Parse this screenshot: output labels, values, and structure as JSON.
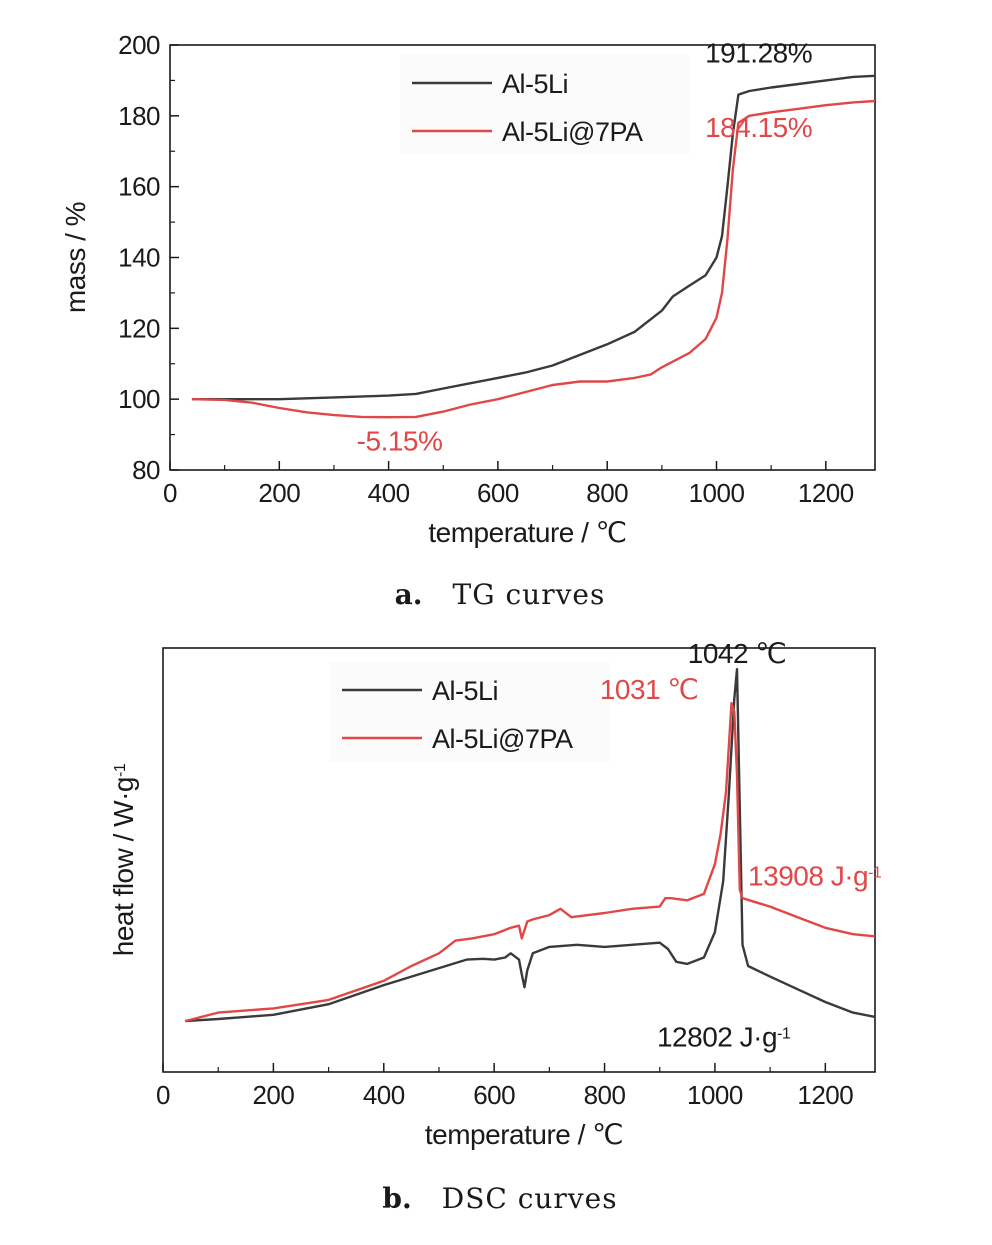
{
  "colors": {
    "black_series": "#3a3a3a",
    "red_series": "#e04848",
    "axis": "#1a1a1a"
  },
  "chart_data": [
    {
      "type": "line",
      "caption": {
        "label": "a.",
        "text": "TG curves"
      },
      "xlabel": "temperature / ℃",
      "ylabel": "mass / %",
      "xlim": [
        0,
        1290
      ],
      "ylim": [
        80,
        200
      ],
      "xticks": [
        0,
        200,
        400,
        600,
        800,
        1000,
        1200
      ],
      "yticks": [
        80,
        100,
        120,
        140,
        160,
        180,
        200
      ],
      "grid": false,
      "legend": {
        "position": "top-center",
        "entries": [
          "Al-5Li",
          "Al-5Li@7PA"
        ]
      },
      "series": [
        {
          "name": "Al-5Li",
          "color": "#3a3a3a",
          "x": [
            40,
            100,
            200,
            300,
            400,
            450,
            500,
            550,
            600,
            650,
            700,
            750,
            800,
            850,
            900,
            920,
            950,
            980,
            1000,
            1010,
            1020,
            1030,
            1040,
            1060,
            1100,
            1150,
            1200,
            1250,
            1290
          ],
          "y": [
            100,
            100,
            100,
            100.5,
            101,
            101.5,
            103,
            104.5,
            106,
            107.5,
            109.5,
            112.5,
            115.5,
            119,
            125,
            129,
            132,
            135,
            140,
            146,
            160,
            175,
            186,
            187,
            188,
            189,
            190,
            191,
            191.3
          ]
        },
        {
          "name": "Al-5Li@7PA",
          "color": "#e04848",
          "x": [
            40,
            100,
            150,
            200,
            250,
            300,
            350,
            400,
            450,
            500,
            550,
            600,
            650,
            700,
            750,
            800,
            850,
            880,
            900,
            950,
            980,
            1000,
            1010,
            1020,
            1030,
            1040,
            1060,
            1100,
            1150,
            1200,
            1250,
            1290
          ],
          "y": [
            100,
            99.8,
            99,
            97.5,
            96.3,
            95.5,
            95,
            94.9,
            95,
            96.5,
            98.5,
            100,
            102,
            104,
            105,
            105,
            106,
            107,
            109,
            113,
            117,
            123,
            130,
            145,
            165,
            178,
            180,
            181,
            182,
            183,
            183.8,
            184.2
          ]
        }
      ],
      "annotations": [
        {
          "text": "191.28%",
          "x": 1175,
          "y": 195,
          "color": "#1a1a1a"
        },
        {
          "text": "184.15%",
          "x": 1175,
          "y": 174,
          "color": "#e04848"
        },
        {
          "text": "-5.15%",
          "x": 420,
          "y": 85.5,
          "color": "#e04848"
        }
      ]
    },
    {
      "type": "line",
      "caption": {
        "label": "b.",
        "text": "DSC curves"
      },
      "xlabel": "temperature / ℃",
      "ylabel": "heat flow / W·g",
      "ylabel_sup": "-1",
      "xlim": [
        0,
        1290
      ],
      "ylim": [
        0,
        100
      ],
      "xticks": [
        0,
        200,
        400,
        600,
        800,
        1000,
        1200
      ],
      "yticks": [],
      "grid": false,
      "legend": {
        "position": "top-left",
        "entries": [
          "Al-5Li",
          "Al-5Li@7PA"
        ]
      },
      "series": [
        {
          "name": "Al-5Li",
          "color": "#3a3a3a",
          "x": [
            40,
            100,
            200,
            300,
            400,
            450,
            500,
            550,
            580,
            600,
            620,
            630,
            645,
            650,
            655,
            660,
            670,
            700,
            750,
            800,
            850,
            900,
            915,
            930,
            950,
            980,
            1000,
            1015,
            1025,
            1035,
            1040,
            1045,
            1050,
            1060,
            1100,
            1150,
            1200,
            1250,
            1290
          ],
          "y": [
            12,
            12.5,
            13.5,
            16,
            20.5,
            22.5,
            24.5,
            26.5,
            26.7,
            26.5,
            27,
            28,
            26.5,
            23,
            20,
            24,
            28,
            29.5,
            30,
            29.5,
            30,
            30.5,
            29,
            26,
            25.5,
            27,
            33,
            45,
            65,
            88,
            95,
            62,
            30,
            25,
            22.5,
            19.5,
            16.5,
            14,
            13
          ]
        },
        {
          "name": "Al-5Li@7PA",
          "color": "#e04848",
          "x": [
            40,
            100,
            200,
            300,
            400,
            450,
            500,
            530,
            560,
            600,
            630,
            645,
            650,
            655,
            660,
            670,
            700,
            720,
            740,
            800,
            850,
            900,
            910,
            920,
            950,
            980,
            1000,
            1010,
            1020,
            1030,
            1035,
            1040,
            1045,
            1050,
            1100,
            1150,
            1200,
            1250,
            1290
          ],
          "y": [
            12,
            14,
            15,
            17,
            21.5,
            25,
            28,
            31,
            31.5,
            32.5,
            34,
            34.5,
            31.5,
            33.5,
            35.5,
            36,
            37,
            38.5,
            36.5,
            37.5,
            38.5,
            39,
            41,
            41,
            40.5,
            42,
            49,
            56,
            66,
            87,
            85,
            70,
            43,
            41,
            39,
            36.5,
            34,
            32.5,
            32
          ]
        }
      ],
      "annotations": [
        {
          "text": "1042 ℃",
          "x": 1040,
          "y": 96.5,
          "color": "#1a1a1a"
        },
        {
          "text": "1031 ℃",
          "x": 970,
          "y": 88,
          "color": "#e04848"
        },
        {
          "text": "13908 J·g",
          "sup": "-1",
          "x": 1060,
          "y": 44,
          "color": "#e04848"
        },
        {
          "text": "12802 J·g",
          "sup": "-1",
          "x": 895,
          "y": 6,
          "color": "#1a1a1a"
        }
      ]
    }
  ]
}
